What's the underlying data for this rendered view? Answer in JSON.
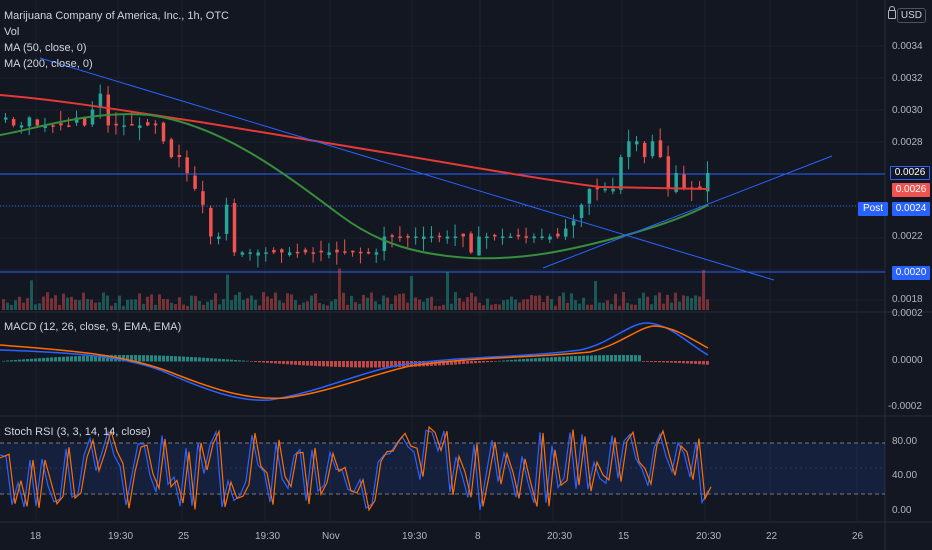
{
  "header": {
    "symbol_line": "Marijuana Company of America, Inc., 1h, OTC",
    "indicators": [
      "Vol",
      "MA (50, close, 0)",
      "MA (200, close, 0)"
    ],
    "currency": "USD"
  },
  "price_axis": {
    "labels": [
      "0.0034",
      "0.0032",
      "0.0030",
      "0.0028",
      "0.0022",
      "0.0018"
    ],
    "tags": [
      {
        "text": "0.0026",
        "color": "#131722",
        "text_color": "#ffffff",
        "border": "#2962ff"
      },
      {
        "text": "0.0026",
        "color": "#ef5350"
      },
      {
        "text": "0.0024",
        "color": "#2962ff"
      },
      {
        "text": "0.0020",
        "color": "#2962ff"
      }
    ],
    "post_label": "Post"
  },
  "macd": {
    "title": "MACD (12, 26, close, 9, EMA, EMA)",
    "labels": [
      "0.0002",
      "0.0000",
      "-0.0002"
    ]
  },
  "stoch": {
    "title": "Stoch RSI (3, 3, 14, 14, close)",
    "labels": [
      "80.00",
      "40.00",
      "0.00"
    ]
  },
  "time_axis": {
    "labels": [
      "18",
      "19:30",
      "25",
      "19:30",
      "Nov",
      "19:30",
      "8",
      "20:30",
      "15",
      "20:30",
      "22",
      "26"
    ]
  },
  "colors": {
    "up": "#26a69a",
    "down": "#ef5350",
    "ma50": "#388e3c",
    "ma200": "#e53935",
    "trendline": "#2962ff",
    "macd_line": "#2962ff",
    "signal_line": "#ff6d00",
    "stoch_k": "#2962ff",
    "stoch_d": "#ff6d00"
  },
  "chart_data": {
    "type": "candlestick",
    "instrument": "Marijuana Company of America, Inc., 1h, OTC",
    "y_range": [
      0.00175,
      0.0036
    ],
    "horizontal_levels": [
      0.0026,
      0.0024,
      0.002
    ],
    "closes": [
      0.00295,
      0.0029,
      0.0029,
      0.00295,
      0.0029,
      0.0029,
      0.0029,
      0.0029,
      0.0029,
      0.00295,
      0.0029,
      0.003,
      0.0031,
      0.0029,
      0.0029,
      0.0029,
      0.0029,
      0.0029,
      0.0029,
      0.0029,
      0.0028,
      0.0027,
      0.0027,
      0.0026,
      0.0025,
      0.0024,
      0.0022,
      0.0022,
      0.0024,
      0.0021,
      0.0021,
      0.0021,
      0.0021,
      0.0021,
      0.0021,
      0.0021,
      0.0021,
      0.0021,
      0.0021,
      0.0021,
      0.0021,
      0.0021,
      0.0021,
      0.0021,
      0.0021,
      0.0021,
      0.0021,
      0.0021,
      0.0022,
      0.0022,
      0.0022,
      0.0022,
      0.0022,
      0.0022,
      0.0022,
      0.0022,
      0.0022,
      0.0022,
      0.0022,
      0.0021,
      0.0022,
      0.0022,
      0.0022,
      0.0022,
      0.0022,
      0.0022,
      0.0022,
      0.0022,
      0.0022,
      0.0022,
      0.0022,
      0.00225,
      0.0023,
      0.0024,
      0.0025,
      0.0025,
      0.0025,
      0.0025,
      0.0027,
      0.0028,
      0.0028,
      0.0027,
      0.0028,
      0.0027,
      0.0025,
      0.0026,
      0.0025,
      0.0025,
      0.0025,
      0.0026
    ]
  }
}
